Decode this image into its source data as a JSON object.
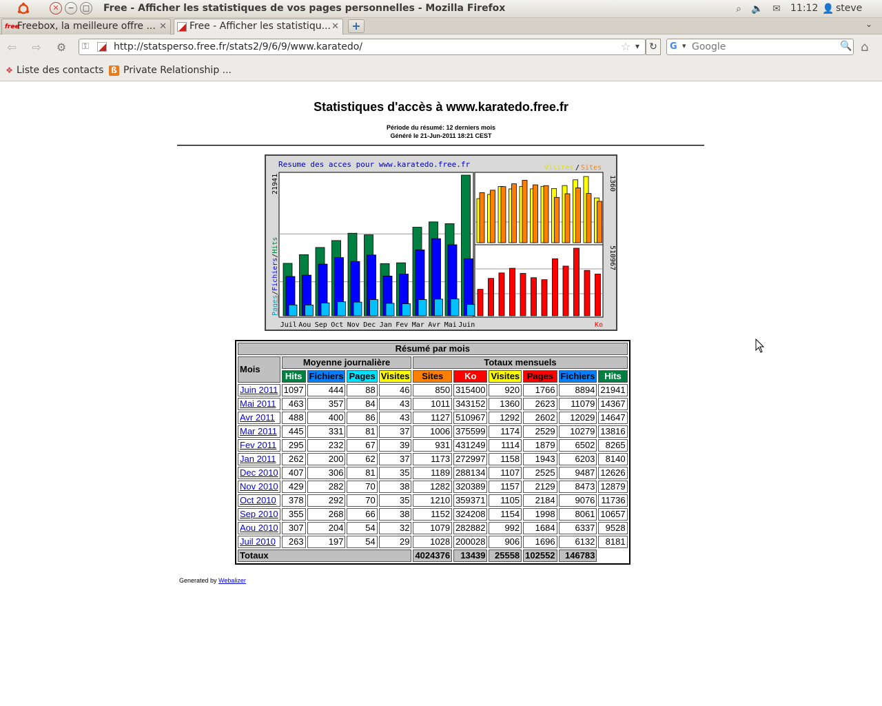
{
  "os_panel": {
    "window_title": "Free - Afficher les statistiques de vos pages personnelles - Mozilla Firefox",
    "clock": "11:12",
    "user": "steve",
    "tray_icons": [
      "search-icon",
      "volume-icon",
      "mail-icon",
      "user-icon"
    ]
  },
  "tabs": [
    {
      "label": "Freebox, la meilleure offre ...",
      "favicon": "free",
      "active": false
    },
    {
      "label": "Free - Afficher les statistiqu...",
      "favicon": "",
      "active": true
    }
  ],
  "navbar": {
    "url": "http://statsperso.free.fr/stats2/9/6/9/www.karatedo/",
    "search_placeholder": "Google"
  },
  "bookmarks": [
    {
      "label": "Liste des contacts",
      "icon": "contacts-icon"
    },
    {
      "label": "Private Relationship ...",
      "icon": "relationship-icon"
    }
  ],
  "page": {
    "title": "Statistiques d'accès à www.karatedo.free.fr",
    "period": "Période du résumé: 12 derniers mois",
    "generated": "Généré le 21-Jun-2011 18:21 CEST",
    "footer_prefix": "Generated by",
    "footer_link": "Webalizer"
  },
  "chart_data": {
    "type": "bar",
    "title": "Resume des acces pour www.karatedo.free.fr",
    "categories": [
      "Juil",
      "Aou",
      "Sep",
      "Oct",
      "Nov",
      "Dec",
      "Jan",
      "Fev",
      "Mar",
      "Avr",
      "Mai",
      "Juin"
    ],
    "left_panel": {
      "ylabel_parts": [
        "Pages",
        "Fichiers",
        "Hits"
      ],
      "ymax_label": "21941",
      "ymax": 21941,
      "series": [
        {
          "name": "Hits",
          "color": "#008040",
          "values": [
            8181,
            9528,
            10657,
            11736,
            12879,
            12626,
            8140,
            8265,
            13816,
            14647,
            14367,
            21941
          ]
        },
        {
          "name": "Fichiers",
          "color": "#0000ff",
          "values": [
            6132,
            6337,
            8061,
            9076,
            8473,
            9487,
            6203,
            6502,
            10279,
            12029,
            11079,
            8894
          ]
        },
        {
          "name": "Pages",
          "color": "#00c0ff",
          "values": [
            1696,
            1684,
            1998,
            2184,
            2129,
            2525,
            1943,
            1879,
            2529,
            2602,
            2623,
            1766
          ]
        }
      ]
    },
    "top_right_panel": {
      "legend_parts": [
        "Visites",
        "Sites"
      ],
      "ymax_label": "1360",
      "ymax": 1360,
      "series": [
        {
          "name": "Visites",
          "color": "#ffff00",
          "values": [
            906,
            992,
            1154,
            1105,
            1157,
            1107,
            1158,
            1114,
            1174,
            1292,
            1360,
            920
          ]
        },
        {
          "name": "Sites",
          "color": "#ff8000",
          "values": [
            1028,
            1079,
            1152,
            1210,
            1282,
            1189,
            1173,
            931,
            1006,
            1127,
            1011,
            850
          ]
        }
      ]
    },
    "bottom_right_panel": {
      "legend": "Ko",
      "ymax_label": "510967",
      "ymax": 510967,
      "series": [
        {
          "name": "Ko",
          "color": "#ff0000",
          "values": [
            200028,
            282882,
            324208,
            359371,
            320389,
            288134,
            272997,
            431249,
            375599,
            510967,
            343152,
            315400
          ]
        }
      ]
    }
  },
  "table": {
    "caption": "Résumé par mois",
    "mois_header": "Mois",
    "group_daily": "Moyenne journalière",
    "group_monthly": "Totaux mensuels",
    "columns": [
      {
        "label": "Hits",
        "color": "#008040"
      },
      {
        "label": "Fichiers",
        "color": "#0080ff"
      },
      {
        "label": "Pages",
        "color": "#00e0ff"
      },
      {
        "label": "Visites",
        "color": "#ffff00"
      },
      {
        "label": "Sites",
        "color": "#ff8000"
      },
      {
        "label": "Ko",
        "color": "#ff0000"
      },
      {
        "label": "Visites",
        "color": "#ffff00"
      },
      {
        "label": "Pages",
        "color": "#ff0000"
      },
      {
        "label": "Fichiers",
        "color": "#0080ff"
      },
      {
        "label": "Hits",
        "color": "#008040"
      }
    ],
    "rows": [
      {
        "month": "Juin 2011",
        "values": [
          "1097",
          "444",
          "88",
          "46",
          "850",
          "315400",
          "920",
          "1766",
          "8894",
          "21941"
        ]
      },
      {
        "month": "Mai 2011",
        "values": [
          "463",
          "357",
          "84",
          "43",
          "1011",
          "343152",
          "1360",
          "2623",
          "11079",
          "14367"
        ]
      },
      {
        "month": "Avr 2011",
        "values": [
          "488",
          "400",
          "86",
          "43",
          "1127",
          "510967",
          "1292",
          "2602",
          "12029",
          "14647"
        ]
      },
      {
        "month": "Mar 2011",
        "values": [
          "445",
          "331",
          "81",
          "37",
          "1006",
          "375599",
          "1174",
          "2529",
          "10279",
          "13816"
        ]
      },
      {
        "month": "Fev 2011",
        "values": [
          "295",
          "232",
          "67",
          "39",
          "931",
          "431249",
          "1114",
          "1879",
          "6502",
          "8265"
        ]
      },
      {
        "month": "Jan 2011",
        "values": [
          "262",
          "200",
          "62",
          "37",
          "1173",
          "272997",
          "1158",
          "1943",
          "6203",
          "8140"
        ]
      },
      {
        "month": "Dec 2010",
        "values": [
          "407",
          "306",
          "81",
          "35",
          "1189",
          "288134",
          "1107",
          "2525",
          "9487",
          "12626"
        ]
      },
      {
        "month": "Nov 2010",
        "values": [
          "429",
          "282",
          "70",
          "38",
          "1282",
          "320389",
          "1157",
          "2129",
          "8473",
          "12879"
        ]
      },
      {
        "month": "Oct 2010",
        "values": [
          "378",
          "292",
          "70",
          "35",
          "1210",
          "359371",
          "1105",
          "2184",
          "9076",
          "11736"
        ]
      },
      {
        "month": "Sep 2010",
        "values": [
          "355",
          "268",
          "66",
          "38",
          "1152",
          "324208",
          "1154",
          "1998",
          "8061",
          "10657"
        ]
      },
      {
        "month": "Aou 2010",
        "values": [
          "307",
          "204",
          "54",
          "32",
          "1079",
          "282882",
          "992",
          "1684",
          "6337",
          "9528"
        ]
      },
      {
        "month": "Juil 2010",
        "values": [
          "263",
          "197",
          "54",
          "29",
          "1028",
          "200028",
          "906",
          "1696",
          "6132",
          "8181"
        ]
      }
    ],
    "totals_label": "Totaux",
    "totals": [
      "4024376",
      "13439",
      "25558",
      "102552",
      "146783"
    ]
  }
}
